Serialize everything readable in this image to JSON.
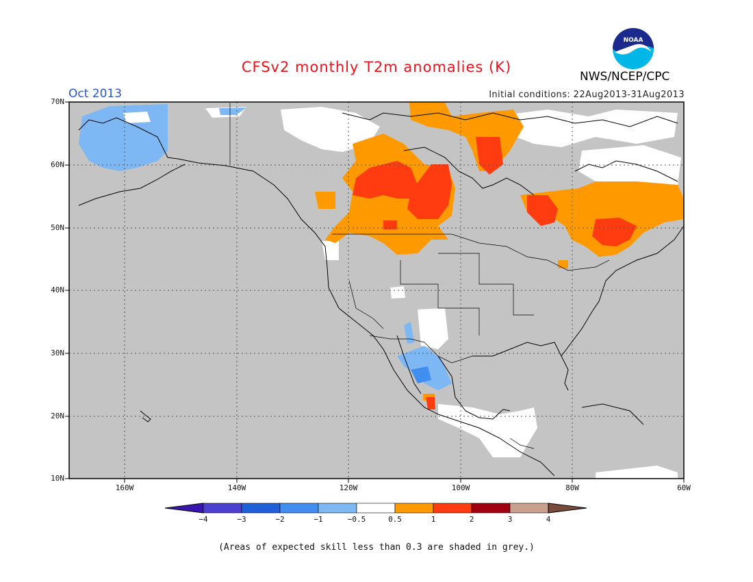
{
  "title": "CFSv2 monthly T2m anomalies (K)",
  "period": "Oct 2013",
  "initial_conditions": "Initial conditions: 22Aug2013-31Aug2013",
  "agency": "NWS/NCEP/CPC",
  "logo_text": "NOAA",
  "latitude_labels": [
    "70N",
    "60N",
    "50N",
    "40N",
    "30N",
    "20N",
    "10N"
  ],
  "longitude_labels": [
    "160W",
    "140W",
    "120W",
    "100W",
    "80W",
    "60W"
  ],
  "colorbar": {
    "labels": [
      "−4",
      "−3",
      "−2",
      "−1",
      "−0.5",
      "0.5",
      "1",
      "2",
      "3",
      "4"
    ],
    "colors": [
      "#3a16b0",
      "#4a3fce",
      "#1f5fd8",
      "#3f8ef0",
      "#7db8f4",
      "#ffffff",
      "#ff9900",
      "#ff3b10",
      "#a00010",
      "#c9a08e",
      "#7a4a3a"
    ]
  },
  "skill_note": "(Areas of expected skill less than 0.3 are shaded in grey.)",
  "colors": {
    "grey_shading": "#c4c4c4",
    "coast": "#000000"
  }
}
